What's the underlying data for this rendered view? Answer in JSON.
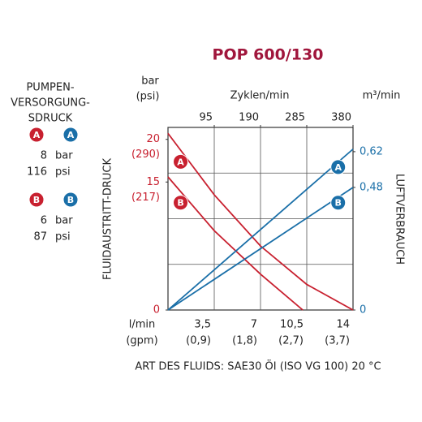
{
  "chart_data": {
    "type": "line",
    "title": "POP 600/130",
    "y_unit": "bar",
    "y_unit_secondary": "(psi)",
    "x2label": "Zyklen/min",
    "y2_unit": "m³/min",
    "x_unit": "l/min",
    "x_unit_secondary": "(gpm)",
    "ylabel": "FLUIDAUSTRITT-DRUCK",
    "y2label": "LUFTVERBRAUCH",
    "footnote": "ART DES FLUIDS: SAE30 ÖI (ISO VG 100) 20 °C",
    "xlim": [
      0,
      14
    ],
    "xticks": [
      {
        "value": 3.5,
        "label": "3,5"
      },
      7,
      {
        "value": 10.5,
        "label": "10,5"
      },
      14
    ],
    "xtick_secondary_labels": [
      "(0,9)",
      "(1,8)",
      "(2,7)",
      "(3,7)"
    ],
    "x2lim": [
      0,
      380
    ],
    "x2ticks": [
      95,
      190,
      285,
      380
    ],
    "ylim": [
      0,
      21.4
    ],
    "yticks": [
      0,
      15,
      20
    ],
    "ytick_secondary_labels": [
      null,
      "(217)",
      "(290)"
    ],
    "y2lim": [
      0,
      0.715
    ],
    "y2ticks": [
      0,
      {
        "value": 0.48,
        "label": "0,48"
      },
      {
        "value": 0.62,
        "label": "0,62"
      }
    ],
    "grid": true,
    "series": [
      {
        "name": "A",
        "color": "#c8202f",
        "axis": "y",
        "x": [
          0,
          3.5,
          7,
          10.5,
          14
        ],
        "values": [
          20.7,
          13.5,
          7.5,
          3.0,
          0
        ]
      },
      {
        "name": "B",
        "color": "#c8202f",
        "axis": "y",
        "x": [
          0,
          3.5,
          7,
          10.2
        ],
        "values": [
          15.6,
          9.3,
          4.2,
          0
        ]
      },
      {
        "name": "A",
        "color": "#1a6fa8",
        "axis": "y2",
        "x": [
          0,
          14
        ],
        "values": [
          0,
          0.63
        ]
      },
      {
        "name": "B",
        "color": "#1a6fa8",
        "axis": "y2",
        "x": [
          0,
          14
        ],
        "values": [
          0,
          0.48
        ]
      }
    ],
    "pump_supply": {
      "title_lines": [
        "PUMPEN-",
        "VERSORGUNG-",
        "SDRUCK"
      ],
      "entries": [
        {
          "badges": [
            "A",
            "A"
          ],
          "bar": 8,
          "bar_unit": "bar",
          "psi": 116,
          "psi_unit": "psi"
        },
        {
          "badges": [
            "B",
            "B"
          ],
          "bar": 6,
          "bar_unit": "bar",
          "psi": 87,
          "psi_unit": "psi"
        }
      ]
    }
  }
}
